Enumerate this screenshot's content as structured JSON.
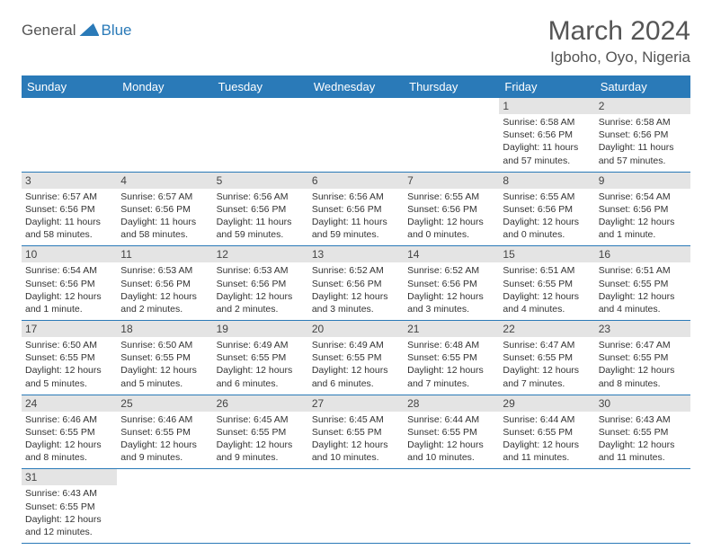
{
  "brand": {
    "text1": "General",
    "text2": "Blue"
  },
  "title": "March 2024",
  "location": "Igboho, Oyo, Nigeria",
  "colors": {
    "accent": "#2a7ab8",
    "dayheader_bg": "#e4e4e4",
    "text": "#333333",
    "muted": "#555555"
  },
  "weekdays": [
    "Sunday",
    "Monday",
    "Tuesday",
    "Wednesday",
    "Thursday",
    "Friday",
    "Saturday"
  ],
  "weeks": [
    [
      null,
      null,
      null,
      null,
      null,
      {
        "n": "1",
        "sr": "Sunrise: 6:58 AM",
        "ss": "Sunset: 6:56 PM",
        "dl": "Daylight: 11 hours and 57 minutes."
      },
      {
        "n": "2",
        "sr": "Sunrise: 6:58 AM",
        "ss": "Sunset: 6:56 PM",
        "dl": "Daylight: 11 hours and 57 minutes."
      }
    ],
    [
      {
        "n": "3",
        "sr": "Sunrise: 6:57 AM",
        "ss": "Sunset: 6:56 PM",
        "dl": "Daylight: 11 hours and 58 minutes."
      },
      {
        "n": "4",
        "sr": "Sunrise: 6:57 AM",
        "ss": "Sunset: 6:56 PM",
        "dl": "Daylight: 11 hours and 58 minutes."
      },
      {
        "n": "5",
        "sr": "Sunrise: 6:56 AM",
        "ss": "Sunset: 6:56 PM",
        "dl": "Daylight: 11 hours and 59 minutes."
      },
      {
        "n": "6",
        "sr": "Sunrise: 6:56 AM",
        "ss": "Sunset: 6:56 PM",
        "dl": "Daylight: 11 hours and 59 minutes."
      },
      {
        "n": "7",
        "sr": "Sunrise: 6:55 AM",
        "ss": "Sunset: 6:56 PM",
        "dl": "Daylight: 12 hours and 0 minutes."
      },
      {
        "n": "8",
        "sr": "Sunrise: 6:55 AM",
        "ss": "Sunset: 6:56 PM",
        "dl": "Daylight: 12 hours and 0 minutes."
      },
      {
        "n": "9",
        "sr": "Sunrise: 6:54 AM",
        "ss": "Sunset: 6:56 PM",
        "dl": "Daylight: 12 hours and 1 minute."
      }
    ],
    [
      {
        "n": "10",
        "sr": "Sunrise: 6:54 AM",
        "ss": "Sunset: 6:56 PM",
        "dl": "Daylight: 12 hours and 1 minute."
      },
      {
        "n": "11",
        "sr": "Sunrise: 6:53 AM",
        "ss": "Sunset: 6:56 PM",
        "dl": "Daylight: 12 hours and 2 minutes."
      },
      {
        "n": "12",
        "sr": "Sunrise: 6:53 AM",
        "ss": "Sunset: 6:56 PM",
        "dl": "Daylight: 12 hours and 2 minutes."
      },
      {
        "n": "13",
        "sr": "Sunrise: 6:52 AM",
        "ss": "Sunset: 6:56 PM",
        "dl": "Daylight: 12 hours and 3 minutes."
      },
      {
        "n": "14",
        "sr": "Sunrise: 6:52 AM",
        "ss": "Sunset: 6:56 PM",
        "dl": "Daylight: 12 hours and 3 minutes."
      },
      {
        "n": "15",
        "sr": "Sunrise: 6:51 AM",
        "ss": "Sunset: 6:55 PM",
        "dl": "Daylight: 12 hours and 4 minutes."
      },
      {
        "n": "16",
        "sr": "Sunrise: 6:51 AM",
        "ss": "Sunset: 6:55 PM",
        "dl": "Daylight: 12 hours and 4 minutes."
      }
    ],
    [
      {
        "n": "17",
        "sr": "Sunrise: 6:50 AM",
        "ss": "Sunset: 6:55 PM",
        "dl": "Daylight: 12 hours and 5 minutes."
      },
      {
        "n": "18",
        "sr": "Sunrise: 6:50 AM",
        "ss": "Sunset: 6:55 PM",
        "dl": "Daylight: 12 hours and 5 minutes."
      },
      {
        "n": "19",
        "sr": "Sunrise: 6:49 AM",
        "ss": "Sunset: 6:55 PM",
        "dl": "Daylight: 12 hours and 6 minutes."
      },
      {
        "n": "20",
        "sr": "Sunrise: 6:49 AM",
        "ss": "Sunset: 6:55 PM",
        "dl": "Daylight: 12 hours and 6 minutes."
      },
      {
        "n": "21",
        "sr": "Sunrise: 6:48 AM",
        "ss": "Sunset: 6:55 PM",
        "dl": "Daylight: 12 hours and 7 minutes."
      },
      {
        "n": "22",
        "sr": "Sunrise: 6:47 AM",
        "ss": "Sunset: 6:55 PM",
        "dl": "Daylight: 12 hours and 7 minutes."
      },
      {
        "n": "23",
        "sr": "Sunrise: 6:47 AM",
        "ss": "Sunset: 6:55 PM",
        "dl": "Daylight: 12 hours and 8 minutes."
      }
    ],
    [
      {
        "n": "24",
        "sr": "Sunrise: 6:46 AM",
        "ss": "Sunset: 6:55 PM",
        "dl": "Daylight: 12 hours and 8 minutes."
      },
      {
        "n": "25",
        "sr": "Sunrise: 6:46 AM",
        "ss": "Sunset: 6:55 PM",
        "dl": "Daylight: 12 hours and 9 minutes."
      },
      {
        "n": "26",
        "sr": "Sunrise: 6:45 AM",
        "ss": "Sunset: 6:55 PM",
        "dl": "Daylight: 12 hours and 9 minutes."
      },
      {
        "n": "27",
        "sr": "Sunrise: 6:45 AM",
        "ss": "Sunset: 6:55 PM",
        "dl": "Daylight: 12 hours and 10 minutes."
      },
      {
        "n": "28",
        "sr": "Sunrise: 6:44 AM",
        "ss": "Sunset: 6:55 PM",
        "dl": "Daylight: 12 hours and 10 minutes."
      },
      {
        "n": "29",
        "sr": "Sunrise: 6:44 AM",
        "ss": "Sunset: 6:55 PM",
        "dl": "Daylight: 12 hours and 11 minutes."
      },
      {
        "n": "30",
        "sr": "Sunrise: 6:43 AM",
        "ss": "Sunset: 6:55 PM",
        "dl": "Daylight: 12 hours and 11 minutes."
      }
    ],
    [
      {
        "n": "31",
        "sr": "Sunrise: 6:43 AM",
        "ss": "Sunset: 6:55 PM",
        "dl": "Daylight: 12 hours and 12 minutes."
      },
      null,
      null,
      null,
      null,
      null,
      null
    ]
  ]
}
